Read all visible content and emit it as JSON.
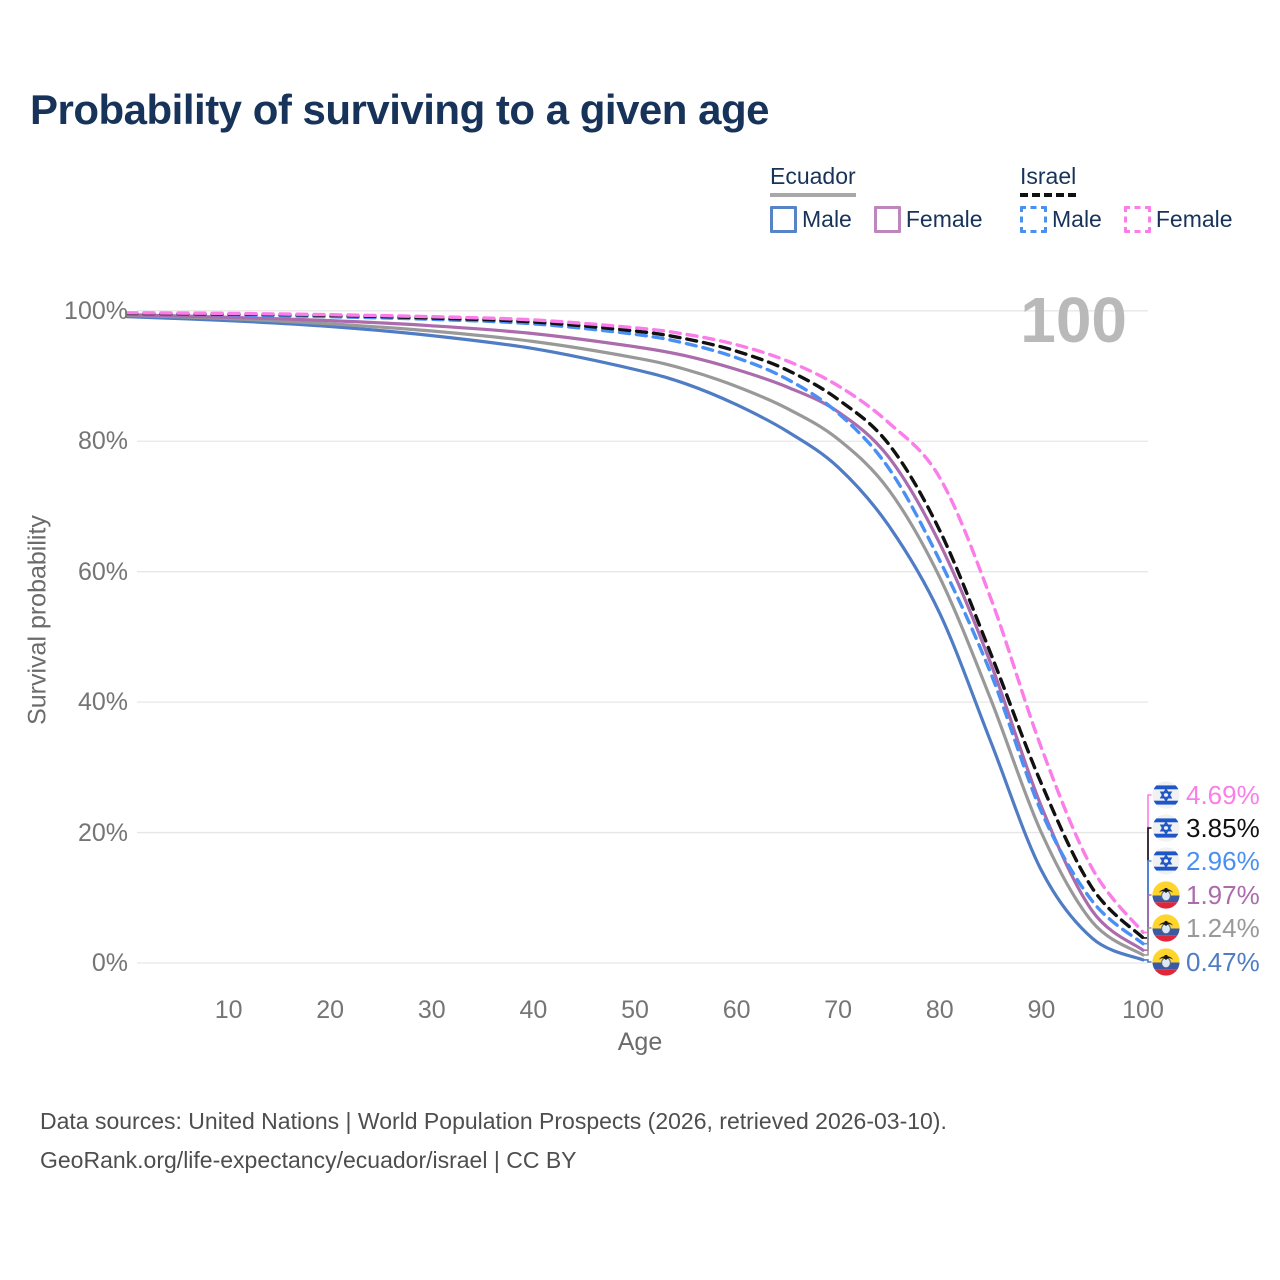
{
  "title": "Probability of surviving to a given age",
  "watermark_age": "100",
  "legend": {
    "groups": [
      {
        "label": "Ecuador",
        "underline_style": "solid",
        "underline_color": "#a8a8a8",
        "items": [
          {
            "label": "Male",
            "color": "#5585c8",
            "dash": false
          },
          {
            "label": "Female",
            "color": "#bd86bc",
            "dash": false
          }
        ]
      },
      {
        "label": "Israel",
        "underline_style": "dashed",
        "underline_color": "#111111",
        "items": [
          {
            "label": "Male",
            "color": "#4a90f2",
            "dash": true
          },
          {
            "label": "Female",
            "color": "#fb7de9",
            "dash": true
          }
        ]
      }
    ]
  },
  "chart_data": {
    "type": "line",
    "title": "Probability of surviving to a given age",
    "xlabel": "Age",
    "ylabel": "Survival probability",
    "xlim": [
      0,
      100
    ],
    "ylim": [
      0,
      100
    ],
    "grid": "horizontal",
    "x_ticks": [
      10,
      20,
      30,
      40,
      50,
      60,
      70,
      80,
      90,
      100
    ],
    "y_ticks": [
      {
        "value": 0,
        "label": "0%"
      },
      {
        "value": 20,
        "label": "20%"
      },
      {
        "value": 40,
        "label": "40%"
      },
      {
        "value": 60,
        "label": "60%"
      },
      {
        "value": 80,
        "label": "80%"
      },
      {
        "value": 100,
        "label": "100%"
      }
    ],
    "x": [
      0,
      10,
      20,
      30,
      40,
      50,
      55,
      60,
      65,
      70,
      75,
      80,
      85,
      90,
      95,
      100
    ],
    "series": [
      {
        "name": "Ecuador male",
        "country": "Ecuador",
        "color": "#4f7cc4",
        "style": "solid",
        "flag": "ecuador",
        "values": [
          99.1,
          98.5,
          97.6,
          96.2,
          94.2,
          91.0,
          88.8,
          85.6,
          81.5,
          76.0,
          67.0,
          53.6,
          34.0,
          14.2,
          3.8,
          0.47
        ],
        "end_label": "0.47%"
      },
      {
        "name": "Ecuador total",
        "country": "Ecuador",
        "color": "#999999",
        "style": "solid",
        "flag": "ecuador",
        "values": [
          99.3,
          98.8,
          98.0,
          96.9,
          95.3,
          92.8,
          91.0,
          88.4,
          85.0,
          80.3,
          72.5,
          59.1,
          40.5,
          20.0,
          6.3,
          1.24
        ],
        "end_label": "1.24%"
      },
      {
        "name": "Ecuador female",
        "country": "Ecuador",
        "color": "#ab6bac",
        "style": "solid",
        "flag": "ecuador",
        "values": [
          99.4,
          99.0,
          98.5,
          97.7,
          96.5,
          94.5,
          93.1,
          91.0,
          88.3,
          84.5,
          77.5,
          64.3,
          46.0,
          24.0,
          8.0,
          1.97
        ],
        "end_label": "1.97%"
      },
      {
        "name": "Israel male",
        "country": "Israel",
        "color": "#4a90f2",
        "style": "dashed",
        "flag": "israel",
        "values": [
          99.6,
          99.4,
          99.1,
          98.7,
          98.0,
          96.4,
          95.0,
          92.8,
          89.5,
          84.3,
          75.8,
          61.7,
          44.5,
          23.2,
          9.5,
          2.96
        ],
        "end_label": "2.96%"
      },
      {
        "name": "Israel total",
        "country": "Israel",
        "color": "#111111",
        "style": "dashed",
        "flag": "israel",
        "values": [
          99.6,
          99.5,
          99.3,
          98.9,
          98.3,
          96.9,
          95.7,
          93.8,
          90.9,
          86.4,
          79.5,
          66.3,
          47.5,
          27.5,
          11.5,
          3.85
        ],
        "end_label": "3.85%"
      },
      {
        "name": "Israel female",
        "country": "Israel",
        "color": "#fb7de9",
        "style": "dashed",
        "flag": "israel",
        "values": [
          99.7,
          99.6,
          99.4,
          99.1,
          98.6,
          97.4,
          96.4,
          94.8,
          92.3,
          88.5,
          82.8,
          74.4,
          56.0,
          33.0,
          14.5,
          4.69
        ],
        "end_label": "4.69%"
      }
    ],
    "end_labels_top_to_bottom": [
      "4.69%",
      "3.85%",
      "2.96%",
      "1.97%",
      "1.24%",
      "0.47%"
    ],
    "legend_position": "top-right"
  },
  "footer": {
    "line1": "Data sources: United Nations | World Population Prospects (2026, retrieved 2026-03-10).",
    "line2": "GeoRank.org/life-expectancy/ecuador/israel | CC BY"
  }
}
